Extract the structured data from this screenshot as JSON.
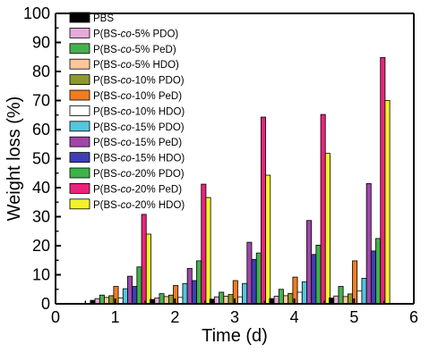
{
  "chart_data": {
    "type": "bar",
    "xlabel": "Time (d)",
    "ylabel": "Weight loss (%)",
    "xlim": [
      0,
      6
    ],
    "ylim": [
      0,
      100
    ],
    "xticks": [
      "0",
      "1",
      "2",
      "3",
      "4",
      "5",
      "6"
    ],
    "yticks": [
      "0",
      "10",
      "20",
      "30",
      "40",
      "50",
      "60",
      "70",
      "80",
      "90",
      "100"
    ],
    "categories": [
      "1",
      "2",
      "3",
      "4",
      "5"
    ],
    "legend_position": "top-left",
    "grid": false,
    "series": [
      {
        "name_parts": [
          "P",
          "BS"
        ],
        "color": "#000000",
        "values": [
          1.2,
          1.5,
          1.6,
          1.8,
          2.0
        ]
      },
      {
        "name_parts": [
          "P(BS-",
          "co",
          "-5% PDO)"
        ],
        "color": "#e6a9dc",
        "values": [
          1.8,
          2.0,
          2.4,
          2.6,
          2.7
        ]
      },
      {
        "name_parts": [
          "P(BS-",
          "co",
          "-5% PeD)"
        ],
        "color": "#46b04f",
        "values": [
          3.0,
          3.5,
          4.0,
          5.0,
          6.0
        ]
      },
      {
        "name_parts": [
          "P(BS-",
          "co",
          "-5% HDO)"
        ],
        "color": "#ffc799",
        "values": [
          2.2,
          2.5,
          2.6,
          2.8,
          2.5
        ]
      },
      {
        "name_parts": [
          "P(BS-",
          "co",
          "-10% PDO)"
        ],
        "color": "#8c9a2e",
        "values": [
          2.8,
          3.0,
          3.2,
          3.6,
          3.4
        ]
      },
      {
        "name_parts": [
          "P(BS-",
          "co",
          "-10% PeD)"
        ],
        "color": "#f07d22",
        "values": [
          6.0,
          6.3,
          8.0,
          9.2,
          14.8
        ]
      },
      {
        "name_parts": [
          "P(BS-",
          "co",
          "-10% HDO)"
        ],
        "color": "#ffffff",
        "values": [
          2.0,
          2.2,
          2.4,
          4.0,
          4.4
        ]
      },
      {
        "name_parts": [
          "P(BS-",
          "co",
          "-15% PDO)"
        ],
        "color": "#52c6de",
        "values": [
          5.2,
          7.0,
          7.0,
          7.6,
          8.8
        ]
      },
      {
        "name_parts": [
          "P(BS-",
          "co",
          "-15% PeD)"
        ],
        "color": "#a046a8",
        "values": [
          9.5,
          12.2,
          21.2,
          28.7,
          41.4
        ]
      },
      {
        "name_parts": [
          "P(BS-",
          "co",
          "-15% HDO)"
        ],
        "color": "#3f3fb4",
        "values": [
          6.0,
          8.0,
          15.3,
          17.0,
          18.2
        ]
      },
      {
        "name_parts": [
          "P(BS-",
          "co",
          "-20% PDO)"
        ],
        "color": "#3cb34a",
        "values": [
          12.7,
          14.8,
          17.5,
          20.2,
          22.5
        ]
      },
      {
        "name_parts": [
          "P(BS-",
          "co",
          "-20% PeD)"
        ],
        "color": "#e8247c",
        "values": [
          30.8,
          41.2,
          64.3,
          65.2,
          84.8
        ]
      },
      {
        "name_parts": [
          "P(BS-",
          "co",
          "-20% HDO)"
        ],
        "color": "#f2f22c",
        "values": [
          24.0,
          36.6,
          44.3,
          51.8,
          70.0
        ]
      }
    ]
  }
}
